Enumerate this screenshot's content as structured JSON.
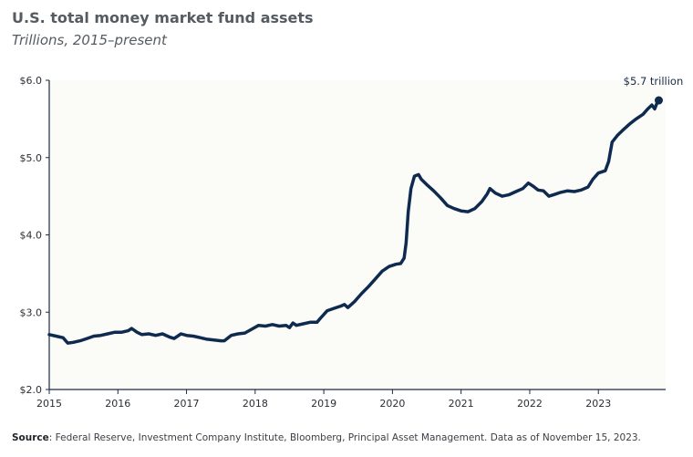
{
  "header": {
    "title": "U.S. total money market fund assets",
    "subtitle": "Trillions, 2015–present"
  },
  "source": {
    "label": "Source",
    "text": ": Federal Reserve, Investment Company Institute, Bloomberg, Principal Asset Management. Data as of November 15, 2023."
  },
  "colors": {
    "line": "#0f2a4f",
    "plot_bg": "#fbfbf8",
    "axis": "#1b2a45"
  },
  "chart_data": {
    "type": "line",
    "title": "U.S. total money market fund assets",
    "subtitle": "Trillions, 2015–present",
    "xlabel": "",
    "ylabel": "",
    "xlim": [
      2015,
      2023.98
    ],
    "ylim": [
      2.0,
      6.0
    ],
    "grid": false,
    "x_ticks": [
      2015,
      2016,
      2017,
      2018,
      2019,
      2020,
      2021,
      2022,
      2023
    ],
    "x_tick_labels": [
      "2015",
      "2016",
      "2017",
      "2018",
      "2019",
      "2020",
      "2021",
      "2022",
      "2023"
    ],
    "y_ticks": [
      2.0,
      3.0,
      4.0,
      5.0,
      6.0
    ],
    "y_tick_labels": [
      "$2.0",
      "$3.0",
      "$4.0",
      "$5.0",
      "$6.0"
    ],
    "annotation": {
      "text": "$5.7 trillion",
      "x": 2023.88,
      "y": 5.74
    },
    "series": [
      {
        "values": [
          [
            2015.0,
            2.71
          ],
          [
            2015.1,
            2.69
          ],
          [
            2015.2,
            2.67
          ],
          [
            2015.27,
            2.6
          ],
          [
            2015.35,
            2.61
          ],
          [
            2015.45,
            2.63
          ],
          [
            2015.55,
            2.66
          ],
          [
            2015.65,
            2.69
          ],
          [
            2015.75,
            2.7
          ],
          [
            2015.85,
            2.72
          ],
          [
            2015.95,
            2.74
          ],
          [
            2016.05,
            2.74
          ],
          [
            2016.15,
            2.76
          ],
          [
            2016.2,
            2.79
          ],
          [
            2016.28,
            2.74
          ],
          [
            2016.35,
            2.71
          ],
          [
            2016.45,
            2.72
          ],
          [
            2016.55,
            2.7
          ],
          [
            2016.65,
            2.72
          ],
          [
            2016.75,
            2.68
          ],
          [
            2016.82,
            2.66
          ],
          [
            2016.92,
            2.72
          ],
          [
            2017.0,
            2.7
          ],
          [
            2017.1,
            2.69
          ],
          [
            2017.2,
            2.67
          ],
          [
            2017.3,
            2.65
          ],
          [
            2017.4,
            2.64
          ],
          [
            2017.5,
            2.63
          ],
          [
            2017.55,
            2.63
          ],
          [
            2017.65,
            2.7
          ],
          [
            2017.75,
            2.72
          ],
          [
            2017.85,
            2.73
          ],
          [
            2017.95,
            2.78
          ],
          [
            2018.05,
            2.83
          ],
          [
            2018.15,
            2.82
          ],
          [
            2018.25,
            2.84
          ],
          [
            2018.35,
            2.82
          ],
          [
            2018.45,
            2.83
          ],
          [
            2018.5,
            2.8
          ],
          [
            2018.55,
            2.86
          ],
          [
            2018.6,
            2.83
          ],
          [
            2018.7,
            2.85
          ],
          [
            2018.8,
            2.87
          ],
          [
            2018.9,
            2.87
          ],
          [
            2018.95,
            2.92
          ],
          [
            2019.05,
            3.02
          ],
          [
            2019.15,
            3.05
          ],
          [
            2019.25,
            3.08
          ],
          [
            2019.3,
            3.1
          ],
          [
            2019.35,
            3.06
          ],
          [
            2019.45,
            3.14
          ],
          [
            2019.55,
            3.24
          ],
          [
            2019.65,
            3.33
          ],
          [
            2019.75,
            3.43
          ],
          [
            2019.85,
            3.53
          ],
          [
            2019.95,
            3.59
          ],
          [
            2020.05,
            3.62
          ],
          [
            2020.12,
            3.63
          ],
          [
            2020.17,
            3.7
          ],
          [
            2020.2,
            3.9
          ],
          [
            2020.23,
            4.3
          ],
          [
            2020.27,
            4.6
          ],
          [
            2020.32,
            4.76
          ],
          [
            2020.38,
            4.78
          ],
          [
            2020.42,
            4.72
          ],
          [
            2020.5,
            4.65
          ],
          [
            2020.6,
            4.57
          ],
          [
            2020.7,
            4.48
          ],
          [
            2020.8,
            4.38
          ],
          [
            2020.9,
            4.34
          ],
          [
            2021.0,
            4.31
          ],
          [
            2021.1,
            4.3
          ],
          [
            2021.2,
            4.34
          ],
          [
            2021.3,
            4.43
          ],
          [
            2021.38,
            4.53
          ],
          [
            2021.42,
            4.6
          ],
          [
            2021.5,
            4.54
          ],
          [
            2021.6,
            4.5
          ],
          [
            2021.7,
            4.52
          ],
          [
            2021.8,
            4.56
          ],
          [
            2021.9,
            4.6
          ],
          [
            2021.98,
            4.67
          ],
          [
            2022.05,
            4.63
          ],
          [
            2022.12,
            4.58
          ],
          [
            2022.2,
            4.57
          ],
          [
            2022.28,
            4.5
          ],
          [
            2022.35,
            4.52
          ],
          [
            2022.45,
            4.55
          ],
          [
            2022.55,
            4.57
          ],
          [
            2022.65,
            4.56
          ],
          [
            2022.75,
            4.58
          ],
          [
            2022.85,
            4.62
          ],
          [
            2022.92,
            4.72
          ],
          [
            2023.0,
            4.8
          ],
          [
            2023.1,
            4.83
          ],
          [
            2023.15,
            4.95
          ],
          [
            2023.2,
            5.2
          ],
          [
            2023.28,
            5.29
          ],
          [
            2023.35,
            5.35
          ],
          [
            2023.45,
            5.43
          ],
          [
            2023.55,
            5.5
          ],
          [
            2023.65,
            5.56
          ],
          [
            2023.72,
            5.63
          ],
          [
            2023.78,
            5.68
          ],
          [
            2023.82,
            5.63
          ],
          [
            2023.86,
            5.72
          ],
          [
            2023.88,
            5.74
          ]
        ]
      }
    ]
  }
}
